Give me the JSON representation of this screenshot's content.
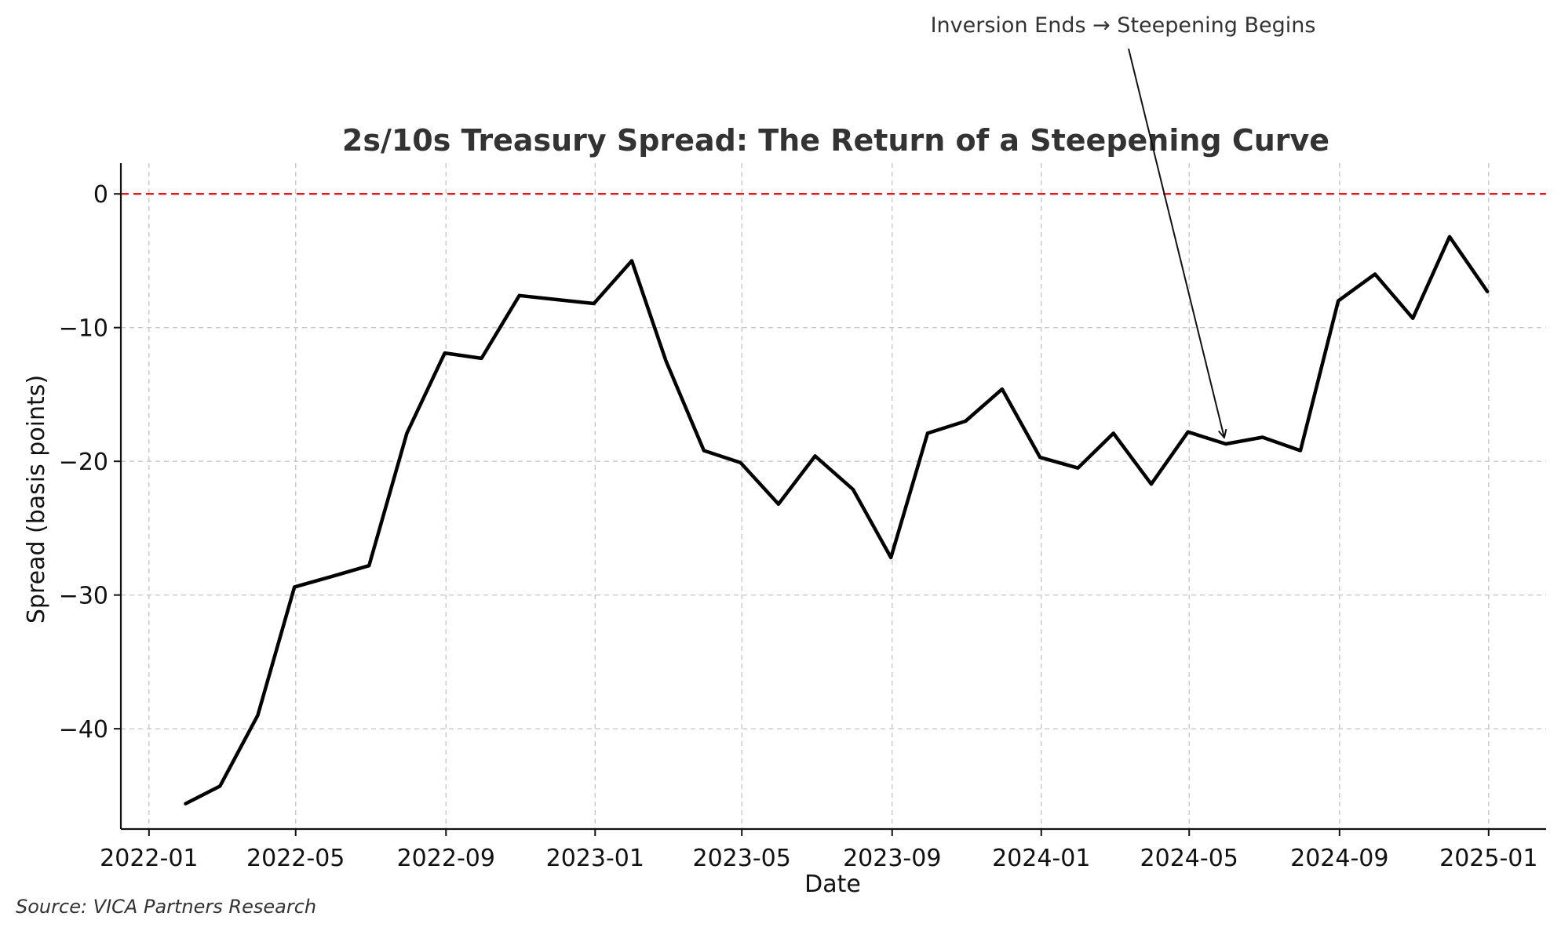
{
  "chart_data": {
    "type": "line",
    "title": "2s/10s Treasury Spread: The Return of a Steepening Curve",
    "xlabel": "Date",
    "ylabel": "Spread (basis points)",
    "x_ticks": [
      "2022-01",
      "2022-05",
      "2022-09",
      "2023-01",
      "2023-05",
      "2023-09",
      "2024-01",
      "2024-05",
      "2024-09",
      "2025-01"
    ],
    "y_ticks": [
      0,
      -10,
      -20,
      -30,
      -40
    ],
    "y_tick_labels": [
      "0",
      "−10",
      "−20",
      "−30",
      "−40"
    ],
    "xlim": [
      "2021-12-09",
      "2025-02-17"
    ],
    "ylim": [
      -47.5,
      2.3
    ],
    "grid": true,
    "reference_line": {
      "y": 0,
      "color": "#e41a1c",
      "style": "dashed"
    },
    "series": [
      {
        "color": "#000000",
        "points": [
          {
            "x": "2022-01-31",
            "y": -45.6
          },
          {
            "x": "2022-02-28",
            "y": -44.3
          },
          {
            "x": "2022-03-31",
            "y": -39.0
          },
          {
            "x": "2022-04-30",
            "y": -29.4
          },
          {
            "x": "2022-05-31",
            "y": -28.6
          },
          {
            "x": "2022-06-30",
            "y": -27.8
          },
          {
            "x": "2022-07-31",
            "y": -17.9
          },
          {
            "x": "2022-08-31",
            "y": -11.9
          },
          {
            "x": "2022-09-30",
            "y": -12.3
          },
          {
            "x": "2022-10-31",
            "y": -7.6
          },
          {
            "x": "2022-11-30",
            "y": -7.9
          },
          {
            "x": "2022-12-31",
            "y": -8.2
          },
          {
            "x": "2023-01-31",
            "y": -5.0
          },
          {
            "x": "2023-02-28",
            "y": -12.5
          },
          {
            "x": "2023-03-31",
            "y": -19.2
          },
          {
            "x": "2023-04-30",
            "y": -20.1
          },
          {
            "x": "2023-05-31",
            "y": -23.2
          },
          {
            "x": "2023-06-30",
            "y": -19.6
          },
          {
            "x": "2023-07-31",
            "y": -22.1
          },
          {
            "x": "2023-08-31",
            "y": -27.2
          },
          {
            "x": "2023-09-30",
            "y": -17.9
          },
          {
            "x": "2023-10-31",
            "y": -17.0
          },
          {
            "x": "2023-11-30",
            "y": -14.6
          },
          {
            "x": "2023-12-31",
            "y": -19.7
          },
          {
            "x": "2024-01-31",
            "y": -20.5
          },
          {
            "x": "2024-02-29",
            "y": -17.9
          },
          {
            "x": "2024-03-31",
            "y": -21.7
          },
          {
            "x": "2024-04-30",
            "y": -17.8
          },
          {
            "x": "2024-05-31",
            "y": -18.7
          },
          {
            "x": "2024-06-30",
            "y": -18.2
          },
          {
            "x": "2024-07-31",
            "y": -19.2
          },
          {
            "x": "2024-08-31",
            "y": -8.0
          },
          {
            "x": "2024-09-30",
            "y": -6.0
          },
          {
            "x": "2024-10-31",
            "y": -9.3
          },
          {
            "x": "2024-11-30",
            "y": -3.2
          },
          {
            "x": "2024-12-31",
            "y": -7.3
          }
        ]
      }
    ],
    "annotation": {
      "text": "Inversion Ends → Steepening Begins",
      "target": {
        "x": "2024-05-31",
        "y": -18.7
      }
    }
  },
  "source": "Source: VICA Partners Research"
}
